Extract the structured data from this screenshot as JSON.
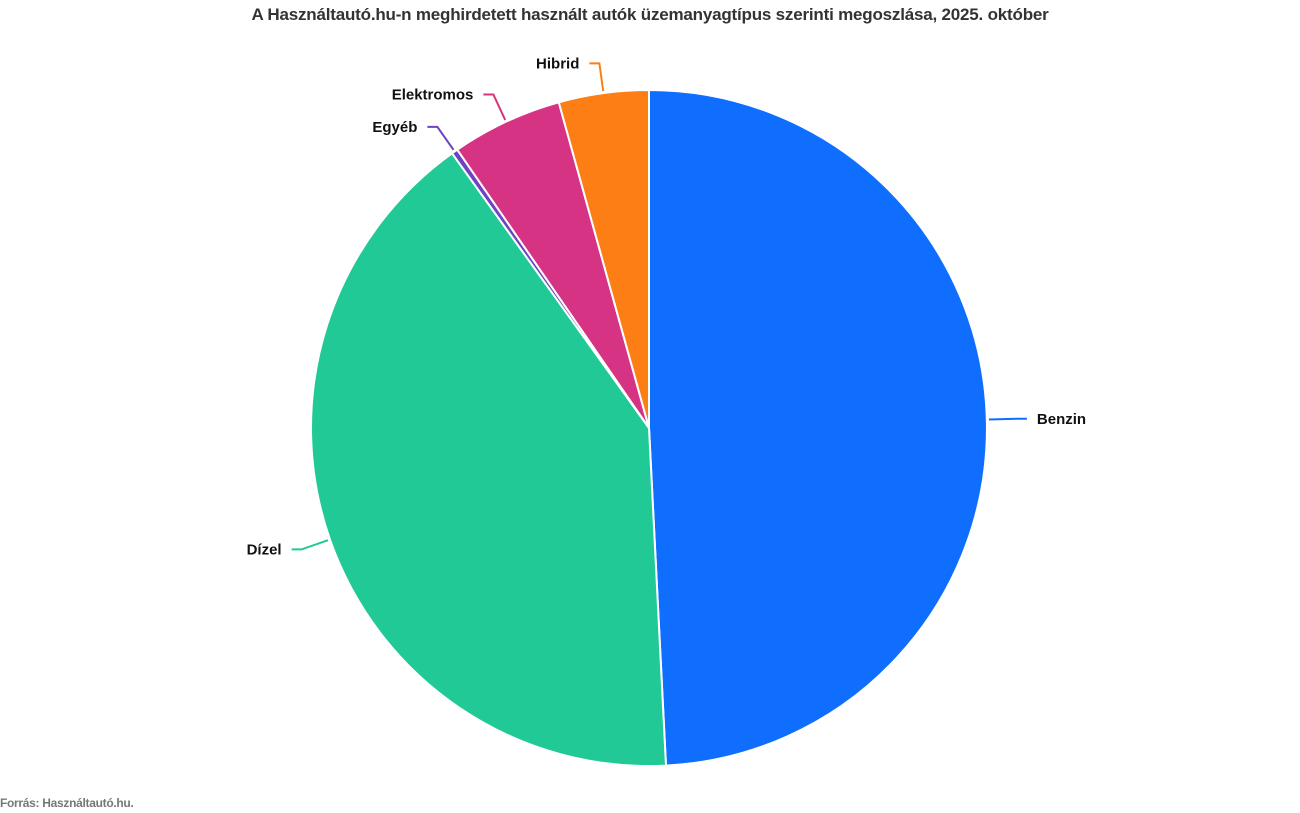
{
  "chart_data": {
    "type": "pie",
    "title": "A Használtautó.hu-n meghirdetett használt autók üzemanyagtípus szerinti megoszlása, 2025. október",
    "source": "Forrás: Használtautó.hu.",
    "slices": [
      {
        "label": "Benzin",
        "value": 49.2,
        "color": "#0f6efd"
      },
      {
        "label": "Dízel",
        "value": 40.9,
        "color": "#21c997"
      },
      {
        "label": "Egyéb",
        "value": 0.3,
        "color": "#6f42c1"
      },
      {
        "label": "Elektromos",
        "value": 5.3,
        "color": "#d63384"
      },
      {
        "label": "Hibrid",
        "value": 4.3,
        "color": "#fd7e14"
      }
    ]
  }
}
